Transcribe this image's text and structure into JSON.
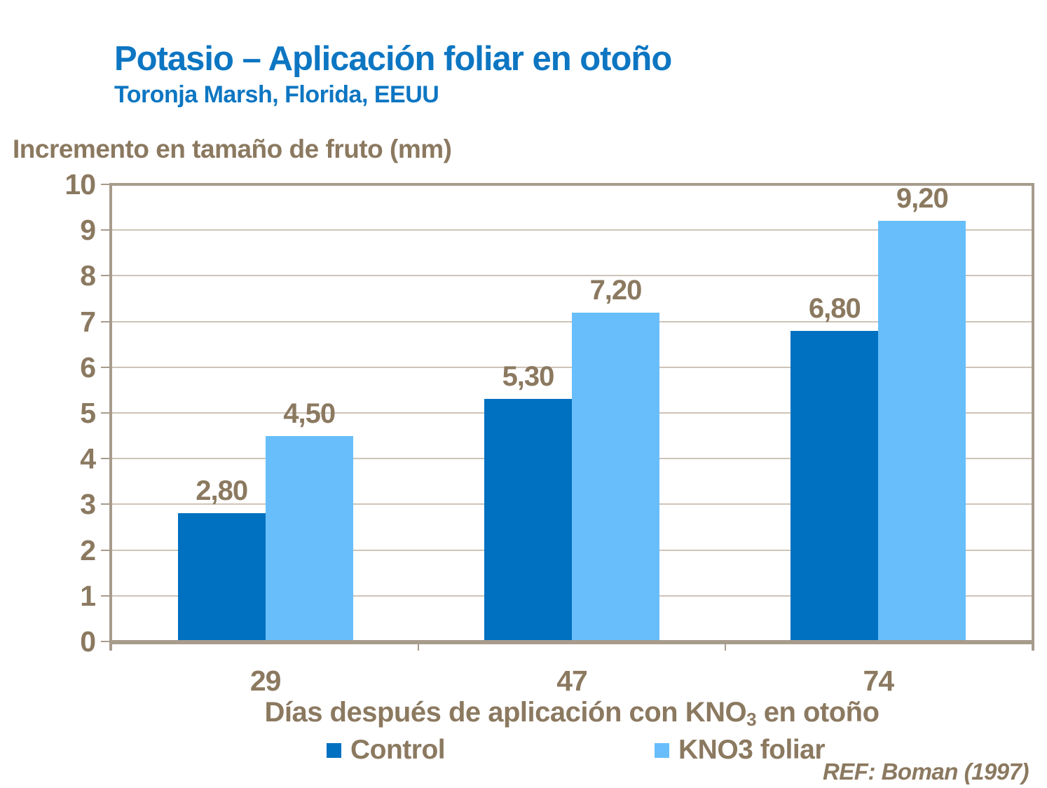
{
  "header": {
    "title": "Potasio – Aplicación foliar en otoño",
    "subtitle": "Toronja Marsh, Florida, EEUU"
  },
  "chart_data": {
    "type": "bar",
    "title": "Potasio – Aplicación foliar en otoño",
    "subtitle": "Toronja Marsh, Florida, EEUU",
    "ylabel": "Incremento en tamaño de fruto (mm)",
    "xlabel": "Días después de aplicación con KNO3 en otoño",
    "xlabel_parts": {
      "prefix": "Días después de aplicación con KNO",
      "subscript": "3",
      "suffix": " en otoño"
    },
    "categories": [
      "29",
      "47",
      "74"
    ],
    "series": [
      {
        "name": "Control",
        "color": "#0070C0",
        "values": [
          2.8,
          5.3,
          6.8
        ],
        "labels": [
          "2,80",
          "5,30",
          "6,80"
        ]
      },
      {
        "name": "KNO3 foliar",
        "color": "#67BEFA",
        "values": [
          4.5,
          7.2,
          9.2
        ],
        "labels": [
          "4,50",
          "7,20",
          "9,20"
        ]
      }
    ],
    "ylim": [
      0,
      10
    ],
    "yticks": [
      0,
      1,
      2,
      3,
      4,
      5,
      6,
      7,
      8,
      9,
      10
    ],
    "grid": true,
    "legend_position": "bottom"
  },
  "footer": {
    "ref": "REF: Boman (1997)"
  },
  "colors": {
    "title_blue": "#0D76C2",
    "text_brown": "#8B7960",
    "frame_tan": "#A79B8C",
    "gridline_tan": "#CDC4B8",
    "background": "#FFFFFF"
  }
}
